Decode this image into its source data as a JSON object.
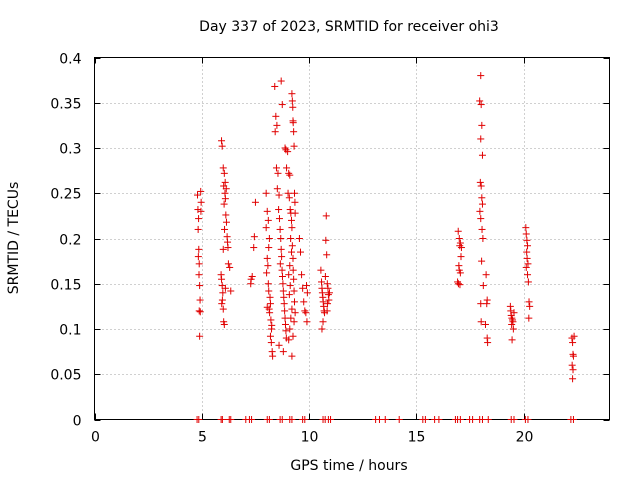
{
  "chart_data": {
    "type": "scatter",
    "title": "Day 337 of 2023, SRMTID for receiver ohi3",
    "xlabel": "GPS time / hours",
    "ylabel": "SRMTID / TECUs",
    "xlim": [
      0,
      24
    ],
    "ylim": [
      0,
      0.4
    ],
    "xticks": [
      0,
      5,
      10,
      15,
      20
    ],
    "yticks": [
      0,
      0.05,
      0.1,
      0.15,
      0.2,
      0.25,
      0.3,
      0.35,
      0.4
    ],
    "xtick_labels": [
      "0",
      "5",
      "10",
      "15",
      "20"
    ],
    "ytick_labels": [
      "0",
      "0.05",
      "0.1",
      "0.15",
      "0.2",
      "0.25",
      "0.3",
      "0.35",
      "0.4"
    ],
    "grid": true,
    "marker": "+",
    "series": [
      {
        "name": "SRMTID",
        "color": "#e00000",
        "points": [
          [
            4.8,
            0.248
          ],
          [
            4.82,
            0.232
          ],
          [
            4.85,
            0.222
          ],
          [
            4.83,
            0.21
          ],
          [
            4.86,
            0.188
          ],
          [
            4.84,
            0.18
          ],
          [
            4.88,
            0.172
          ],
          [
            4.87,
            0.16
          ],
          [
            4.9,
            0.148
          ],
          [
            4.92,
            0.132
          ],
          [
            4.88,
            0.12
          ],
          [
            4.93,
            0.119
          ],
          [
            4.9,
            0.092
          ],
          [
            4.95,
            0.252
          ],
          [
            4.97,
            0.24
          ],
          [
            4.96,
            0.23
          ],
          [
            5.92,
            0.308
          ],
          [
            5.95,
            0.302
          ],
          [
            6.0,
            0.278
          ],
          [
            6.05,
            0.272
          ],
          [
            6.02,
            0.258
          ],
          [
            6.08,
            0.25
          ],
          [
            6.1,
            0.244
          ],
          [
            6.04,
            0.238
          ],
          [
            6.12,
            0.226
          ],
          [
            6.15,
            0.218
          ],
          [
            6.06,
            0.21
          ],
          [
            6.18,
            0.202
          ],
          [
            6.2,
            0.196
          ],
          [
            6.22,
            0.19
          ],
          [
            6.0,
            0.188
          ],
          [
            6.24,
            0.172
          ],
          [
            5.9,
            0.16
          ],
          [
            5.92,
            0.155
          ],
          [
            5.95,
            0.148
          ],
          [
            5.98,
            0.14
          ],
          [
            5.96,
            0.132
          ],
          [
            5.93,
            0.128
          ],
          [
            6.0,
            0.122
          ],
          [
            6.02,
            0.108
          ],
          [
            6.05,
            0.105
          ],
          [
            6.3,
            0.168
          ],
          [
            6.1,
            0.145
          ],
          [
            6.35,
            0.142
          ],
          [
            6.14,
            0.255
          ],
          [
            6.09,
            0.262
          ],
          [
            7.3,
            0.155
          ],
          [
            7.28,
            0.15
          ],
          [
            7.5,
            0.24
          ],
          [
            7.45,
            0.202
          ],
          [
            7.42,
            0.19
          ],
          [
            7.35,
            0.158
          ],
          [
            8.0,
            0.25
          ],
          [
            8.05,
            0.23
          ],
          [
            8.1,
            0.22
          ],
          [
            8.0,
            0.212
          ],
          [
            8.15,
            0.2
          ],
          [
            8.12,
            0.19
          ],
          [
            8.05,
            0.178
          ],
          [
            8.08,
            0.17
          ],
          [
            8.02,
            0.162
          ],
          [
            8.1,
            0.15
          ],
          [
            8.12,
            0.142
          ],
          [
            8.18,
            0.135
          ],
          [
            8.2,
            0.128
          ],
          [
            8.14,
            0.122
          ],
          [
            8.16,
            0.118
          ],
          [
            8.22,
            0.11
          ],
          [
            8.25,
            0.1
          ],
          [
            8.2,
            0.092
          ],
          [
            8.24,
            0.085
          ],
          [
            8.28,
            0.075
          ],
          [
            8.3,
            0.07
          ],
          [
            8.05,
            0.124
          ],
          [
            8.26,
            0.104
          ],
          [
            8.4,
            0.368
          ],
          [
            8.45,
            0.335
          ],
          [
            8.5,
            0.325
          ],
          [
            8.42,
            0.318
          ],
          [
            8.48,
            0.278
          ],
          [
            8.55,
            0.272
          ],
          [
            8.52,
            0.255
          ],
          [
            8.6,
            0.248
          ],
          [
            8.58,
            0.232
          ],
          [
            8.62,
            0.222
          ],
          [
            8.65,
            0.21
          ],
          [
            8.68,
            0.2
          ],
          [
            8.7,
            0.188
          ],
          [
            8.72,
            0.18
          ],
          [
            8.66,
            0.172
          ],
          [
            8.74,
            0.165
          ],
          [
            8.76,
            0.158
          ],
          [
            8.78,
            0.15
          ],
          [
            8.8,
            0.142
          ],
          [
            8.82,
            0.135
          ],
          [
            8.84,
            0.128
          ],
          [
            8.86,
            0.12
          ],
          [
            8.88,
            0.112
          ],
          [
            8.9,
            0.105
          ],
          [
            8.92,
            0.098
          ],
          [
            8.94,
            0.09
          ],
          [
            8.6,
            0.082
          ],
          [
            8.8,
            0.075
          ],
          [
            8.7,
            0.374
          ],
          [
            8.75,
            0.348
          ],
          [
            8.88,
            0.3
          ],
          [
            8.92,
            0.298
          ],
          [
            9.0,
            0.296
          ],
          [
            8.95,
            0.278
          ],
          [
            9.05,
            0.272
          ],
          [
            9.1,
            0.27
          ],
          [
            9.02,
            0.25
          ],
          [
            9.08,
            0.245
          ],
          [
            9.12,
            0.232
          ],
          [
            9.15,
            0.228
          ],
          [
            9.18,
            0.22
          ],
          [
            9.2,
            0.212
          ],
          [
            9.14,
            0.2
          ],
          [
            9.22,
            0.192
          ],
          [
            9.18,
            0.185
          ],
          [
            9.25,
            0.178
          ],
          [
            9.1,
            0.17
          ],
          [
            9.26,
            0.165
          ],
          [
            9.05,
            0.16
          ],
          [
            9.28,
            0.155
          ],
          [
            9.12,
            0.148
          ],
          [
            9.3,
            0.142
          ],
          [
            9.08,
            0.138
          ],
          [
            9.32,
            0.13
          ],
          [
            9.2,
            0.122
          ],
          [
            9.35,
            0.118
          ],
          [
            9.15,
            0.112
          ],
          [
            9.3,
            0.108
          ],
          [
            9.1,
            0.1
          ],
          [
            9.25,
            0.092
          ],
          [
            9.05,
            0.088
          ],
          [
            9.2,
            0.07
          ],
          [
            9.2,
            0.36
          ],
          [
            9.22,
            0.352
          ],
          [
            9.24,
            0.345
          ],
          [
            9.25,
            0.33
          ],
          [
            9.26,
            0.328
          ],
          [
            9.28,
            0.318
          ],
          [
            9.3,
            0.302
          ],
          [
            9.32,
            0.25
          ],
          [
            9.34,
            0.24
          ],
          [
            9.35,
            0.228
          ],
          [
            9.55,
            0.2
          ],
          [
            9.6,
            0.185
          ],
          [
            9.65,
            0.16
          ],
          [
            9.7,
            0.145
          ],
          [
            9.75,
            0.13
          ],
          [
            9.8,
            0.12
          ],
          [
            9.85,
            0.118
          ],
          [
            9.9,
            0.108
          ],
          [
            9.88,
            0.148
          ],
          [
            9.92,
            0.14
          ],
          [
            10.55,
            0.165
          ],
          [
            10.58,
            0.152
          ],
          [
            10.6,
            0.145
          ],
          [
            10.62,
            0.14
          ],
          [
            10.64,
            0.135
          ],
          [
            10.66,
            0.13
          ],
          [
            10.68,
            0.125
          ],
          [
            10.7,
            0.12
          ],
          [
            10.72,
            0.118
          ],
          [
            10.65,
            0.108
          ],
          [
            10.6,
            0.1
          ],
          [
            10.8,
            0.225
          ],
          [
            10.78,
            0.198
          ],
          [
            10.82,
            0.182
          ],
          [
            10.76,
            0.158
          ],
          [
            10.85,
            0.15
          ],
          [
            10.88,
            0.145
          ],
          [
            10.9,
            0.138
          ],
          [
            10.92,
            0.132
          ],
          [
            10.86,
            0.128
          ],
          [
            10.95,
            0.14
          ],
          [
            10.84,
            0.12
          ],
          [
            16.95,
            0.208
          ],
          [
            17.0,
            0.2
          ],
          [
            17.05,
            0.195
          ],
          [
            17.02,
            0.192
          ],
          [
            17.08,
            0.18
          ],
          [
            16.98,
            0.17
          ],
          [
            17.0,
            0.165
          ],
          [
            17.05,
            0.162
          ],
          [
            16.92,
            0.152
          ],
          [
            16.96,
            0.15
          ],
          [
            17.03,
            0.149
          ],
          [
            17.1,
            0.19
          ],
          [
            18.0,
            0.38
          ],
          [
            17.95,
            0.352
          ],
          [
            18.02,
            0.348
          ],
          [
            18.05,
            0.325
          ],
          [
            18.0,
            0.31
          ],
          [
            18.08,
            0.292
          ],
          [
            17.98,
            0.262
          ],
          [
            18.02,
            0.258
          ],
          [
            18.05,
            0.245
          ],
          [
            18.08,
            0.238
          ],
          [
            17.96,
            0.23
          ],
          [
            18.0,
            0.222
          ],
          [
            18.06,
            0.21
          ],
          [
            18.1,
            0.2
          ],
          [
            18.04,
            0.175
          ],
          [
            18.12,
            0.148
          ],
          [
            18.0,
            0.128
          ],
          [
            18.25,
            0.16
          ],
          [
            18.3,
            0.132
          ],
          [
            18.28,
            0.128
          ],
          [
            18.02,
            0.108
          ],
          [
            18.22,
            0.105
          ],
          [
            18.3,
            0.09
          ],
          [
            18.32,
            0.085
          ],
          [
            19.38,
            0.125
          ],
          [
            19.4,
            0.12
          ],
          [
            19.42,
            0.115
          ],
          [
            19.45,
            0.112
          ],
          [
            19.48,
            0.11
          ],
          [
            19.5,
            0.108
          ],
          [
            19.44,
            0.105
          ],
          [
            19.52,
            0.1
          ],
          [
            19.46,
            0.088
          ],
          [
            19.55,
            0.118
          ],
          [
            20.1,
            0.212
          ],
          [
            20.12,
            0.205
          ],
          [
            20.15,
            0.198
          ],
          [
            20.18,
            0.192
          ],
          [
            20.14,
            0.185
          ],
          [
            20.16,
            0.178
          ],
          [
            20.2,
            0.172
          ],
          [
            20.12,
            0.168
          ],
          [
            20.18,
            0.16
          ],
          [
            20.22,
            0.152
          ],
          [
            20.25,
            0.13
          ],
          [
            20.28,
            0.125
          ],
          [
            20.24,
            0.112
          ],
          [
            22.25,
            0.09
          ],
          [
            22.28,
            0.085
          ],
          [
            22.3,
            0.072
          ],
          [
            22.32,
            0.07
          ],
          [
            22.26,
            0.06
          ],
          [
            22.3,
            0.055
          ],
          [
            22.28,
            0.045
          ],
          [
            22.35,
            0.092
          ],
          [
            4.78,
            0
          ],
          [
            4.86,
            0
          ],
          [
            5.9,
            0
          ],
          [
            5.96,
            0
          ],
          [
            6.28,
            0
          ],
          [
            6.35,
            0
          ],
          [
            7.05,
            0
          ],
          [
            7.22,
            0
          ],
          [
            7.32,
            0
          ],
          [
            8.05,
            0
          ],
          [
            8.15,
            0
          ],
          [
            8.65,
            0
          ],
          [
            8.75,
            0
          ],
          [
            9.1,
            0
          ],
          [
            9.2,
            0
          ],
          [
            9.7,
            0
          ],
          [
            9.8,
            0
          ],
          [
            10.65,
            0
          ],
          [
            10.75,
            0
          ],
          [
            10.9,
            0
          ],
          [
            11.0,
            0
          ],
          [
            13.1,
            0
          ],
          [
            13.28,
            0
          ],
          [
            13.55,
            0
          ],
          [
            14.2,
            0
          ],
          [
            15.3,
            0
          ],
          [
            15.42,
            0
          ],
          [
            15.85,
            0
          ],
          [
            16.05,
            0
          ],
          [
            16.82,
            0
          ],
          [
            16.92,
            0
          ],
          [
            17.05,
            0
          ],
          [
            17.48,
            0
          ],
          [
            17.62,
            0
          ],
          [
            17.95,
            0
          ],
          [
            18.08,
            0
          ],
          [
            18.35,
            0
          ],
          [
            19.42,
            0
          ],
          [
            19.55,
            0
          ],
          [
            20.08,
            0
          ],
          [
            20.2,
            0
          ],
          [
            22.2,
            0
          ],
          [
            22.32,
            0
          ]
        ]
      }
    ]
  }
}
